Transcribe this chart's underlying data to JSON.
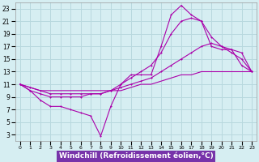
{
  "background_color": "#d6eef2",
  "grid_color": "#b8d8de",
  "line_color": "#aa00aa",
  "xlabel": "Windchill (Refroidissement éolien,°C)",
  "xlabel_fontsize": 6.5,
  "tick_fontsize": 5.5,
  "ylim": [
    2,
    24
  ],
  "xlim": [
    -0.5,
    23.5
  ],
  "line1_x": [
    0,
    1,
    2,
    3,
    4,
    5,
    6,
    7,
    8,
    9,
    10,
    11,
    12,
    13,
    14,
    15,
    16,
    17,
    18,
    19,
    20,
    21,
    22,
    23
  ],
  "line1_y": [
    11,
    10,
    8.5,
    7.5,
    7.5,
    7,
    6.5,
    6,
    2.8,
    7.5,
    11,
    12.5,
    12.5,
    12.5,
    17,
    22,
    23.5,
    22,
    21,
    17,
    16.5,
    16.5,
    14,
    13
  ],
  "line2_x": [
    0,
    1,
    2,
    3,
    4,
    5,
    6,
    7,
    8,
    9,
    10,
    11,
    12,
    13,
    14,
    15,
    16,
    17,
    18,
    19,
    20,
    21,
    22,
    23
  ],
  "line2_y": [
    11,
    10,
    9.5,
    9,
    9,
    9,
    9,
    9.5,
    9.5,
    10,
    11,
    12,
    13,
    14,
    16,
    19,
    21,
    21.5,
    21,
    18.5,
    17,
    16.5,
    16,
    13
  ],
  "line3_x": [
    0,
    1,
    2,
    3,
    4,
    5,
    6,
    7,
    8,
    9,
    10,
    11,
    12,
    13,
    14,
    15,
    16,
    17,
    18,
    19,
    20,
    21,
    22,
    23
  ],
  "line3_y": [
    11,
    10.5,
    10,
    9.5,
    9.5,
    9.5,
    9.5,
    9.5,
    9.5,
    10,
    10.5,
    11,
    11.5,
    12,
    13,
    14,
    15,
    16,
    17,
    17.5,
    17,
    16,
    15,
    13
  ],
  "line4_x": [
    0,
    1,
    2,
    3,
    4,
    5,
    6,
    7,
    8,
    9,
    10,
    11,
    12,
    13,
    14,
    15,
    16,
    17,
    18,
    19,
    20,
    21,
    22,
    23
  ],
  "line4_y": [
    11,
    10.5,
    10,
    10,
    10,
    10,
    10,
    10,
    10,
    10,
    10,
    10.5,
    11,
    11,
    11.5,
    12,
    12.5,
    12.5,
    13,
    13,
    13,
    13,
    13,
    13
  ],
  "yticks": [
    3,
    5,
    7,
    9,
    11,
    13,
    15,
    17,
    19,
    21,
    23
  ],
  "xticks": [
    0,
    1,
    2,
    3,
    4,
    5,
    6,
    7,
    8,
    9,
    10,
    11,
    12,
    13,
    14,
    15,
    16,
    17,
    18,
    19,
    20,
    21,
    22,
    23
  ]
}
